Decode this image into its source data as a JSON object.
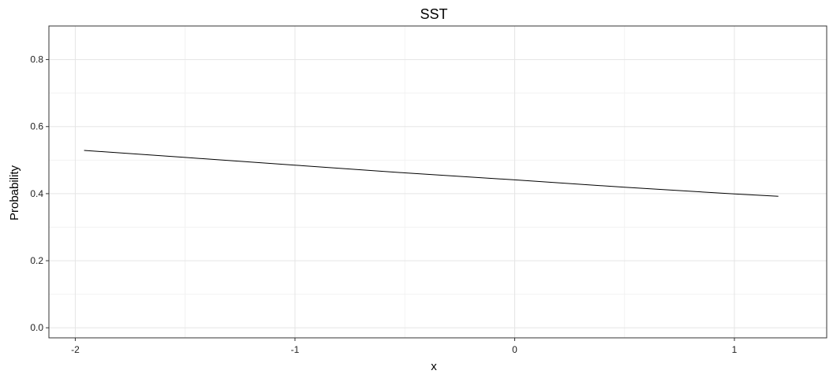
{
  "chart_data": {
    "type": "line",
    "title": "SST",
    "xlabel": "x",
    "ylabel": "Probability",
    "xlim": [
      -2.12,
      1.42
    ],
    "ylim": [
      -0.03,
      0.9
    ],
    "x_ticks": [
      -2,
      -1,
      0,
      1
    ],
    "x_tick_labels": [
      "-2",
      "-1",
      "0",
      "1"
    ],
    "y_ticks": [
      0.0,
      0.2,
      0.4,
      0.6,
      0.8
    ],
    "y_tick_labels": [
      "0.0",
      "0.2",
      "0.4",
      "0.6",
      "0.8"
    ],
    "grid": true,
    "series": [
      {
        "color": "#000000",
        "x": [
          -1.96,
          -1.5,
          -1.0,
          -0.5,
          0.0,
          0.5,
          1.0,
          1.2
        ],
        "values": [
          0.529,
          0.508,
          0.485,
          0.462,
          0.441,
          0.419,
          0.399,
          0.392
        ]
      }
    ]
  },
  "colors": {
    "panel_border": "#333333",
    "grid_major": "#e5e5e5",
    "grid_minor": "#f2f2f2",
    "background": "#ffffff"
  }
}
